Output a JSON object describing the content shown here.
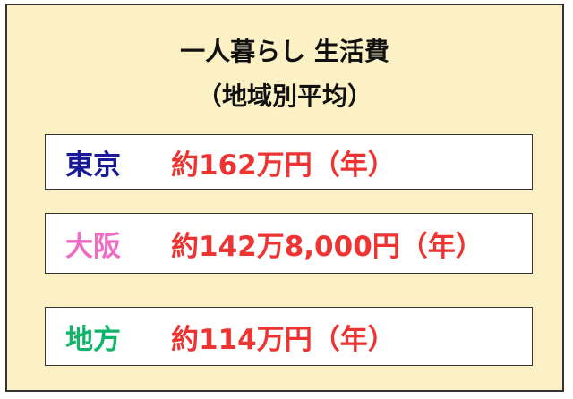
{
  "title": {
    "line1": "一人暮らし 生活費",
    "line2": "（地域別平均）"
  },
  "rows": [
    {
      "region": "東京",
      "value": "約162万円（年）",
      "color": "#1a1a99"
    },
    {
      "region": "大阪",
      "value": "約142万8,000円（年）",
      "color": "#f06cc4"
    },
    {
      "region": "地方",
      "value": "約114万円（年）",
      "color": "#12b36a"
    }
  ],
  "value_color": "#ee3333",
  "background_color": "#fcf0c5"
}
